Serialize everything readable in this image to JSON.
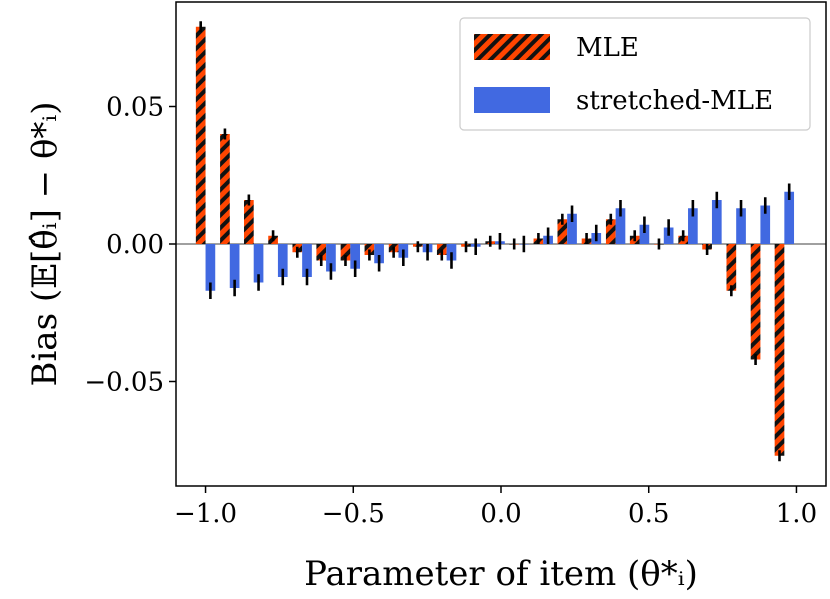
{
  "chart_data": {
    "type": "bar",
    "title": "",
    "xlabel": "Parameter of item (θ*ᵢ)",
    "ylabel": "Bias (𝔼[θ̂ᵢ] − θ*ᵢ)",
    "xlim": [
      -1.1,
      1.1
    ],
    "ylim": [
      -0.088,
      0.088
    ],
    "xticks": [
      -1.0,
      -0.5,
      0.0,
      0.5,
      1.0
    ],
    "xtick_labels": [
      "−1.0",
      "−0.5",
      "0.0",
      "0.5",
      "1.0"
    ],
    "yticks": [
      -0.05,
      0.0,
      0.05
    ],
    "ytick_labels": [
      "−0.05",
      "0.00",
      "0.05"
    ],
    "zero_line": true,
    "legend_position": "top-right",
    "x": [
      -1.0,
      -0.918,
      -0.837,
      -0.755,
      -0.673,
      -0.592,
      -0.51,
      -0.429,
      -0.347,
      -0.265,
      -0.184,
      -0.102,
      -0.02,
      0.061,
      0.143,
      0.224,
      0.306,
      0.388,
      0.469,
      0.551,
      0.633,
      0.714,
      0.796,
      0.878,
      0.959
    ],
    "series": [
      {
        "name": "MLE",
        "color": "#ff4500",
        "hatch": "diagonal-black",
        "values": [
          0.079,
          0.04,
          0.016,
          0.003,
          -0.003,
          -0.006,
          -0.006,
          -0.004,
          -0.003,
          -0.001,
          -0.004,
          -0.001,
          0.001,
          0.0,
          0.002,
          0.009,
          0.002,
          0.009,
          0.003,
          0.0,
          0.003,
          -0.002,
          -0.017,
          -0.042,
          -0.077
        ],
        "errors": [
          0.002,
          0.002,
          0.002,
          0.002,
          0.002,
          0.002,
          0.002,
          0.002,
          0.002,
          0.002,
          0.002,
          0.002,
          0.002,
          0.002,
          0.002,
          0.002,
          0.002,
          0.002,
          0.002,
          0.002,
          0.002,
          0.002,
          0.002,
          0.002,
          0.002
        ]
      },
      {
        "name": "stretched-MLE",
        "color": "#4169e1",
        "hatch": "none",
        "values": [
          -0.017,
          -0.016,
          -0.014,
          -0.012,
          -0.012,
          -0.01,
          -0.009,
          -0.007,
          -0.005,
          -0.003,
          -0.006,
          -0.001,
          0.001,
          0.0,
          0.003,
          0.011,
          0.004,
          0.013,
          0.007,
          0.006,
          0.013,
          0.016,
          0.013,
          0.014,
          0.019
        ],
        "errors": [
          0.003,
          0.003,
          0.003,
          0.003,
          0.003,
          0.003,
          0.003,
          0.003,
          0.003,
          0.003,
          0.003,
          0.003,
          0.003,
          0.003,
          0.003,
          0.003,
          0.003,
          0.003,
          0.003,
          0.003,
          0.003,
          0.003,
          0.003,
          0.003,
          0.003
        ]
      }
    ]
  }
}
